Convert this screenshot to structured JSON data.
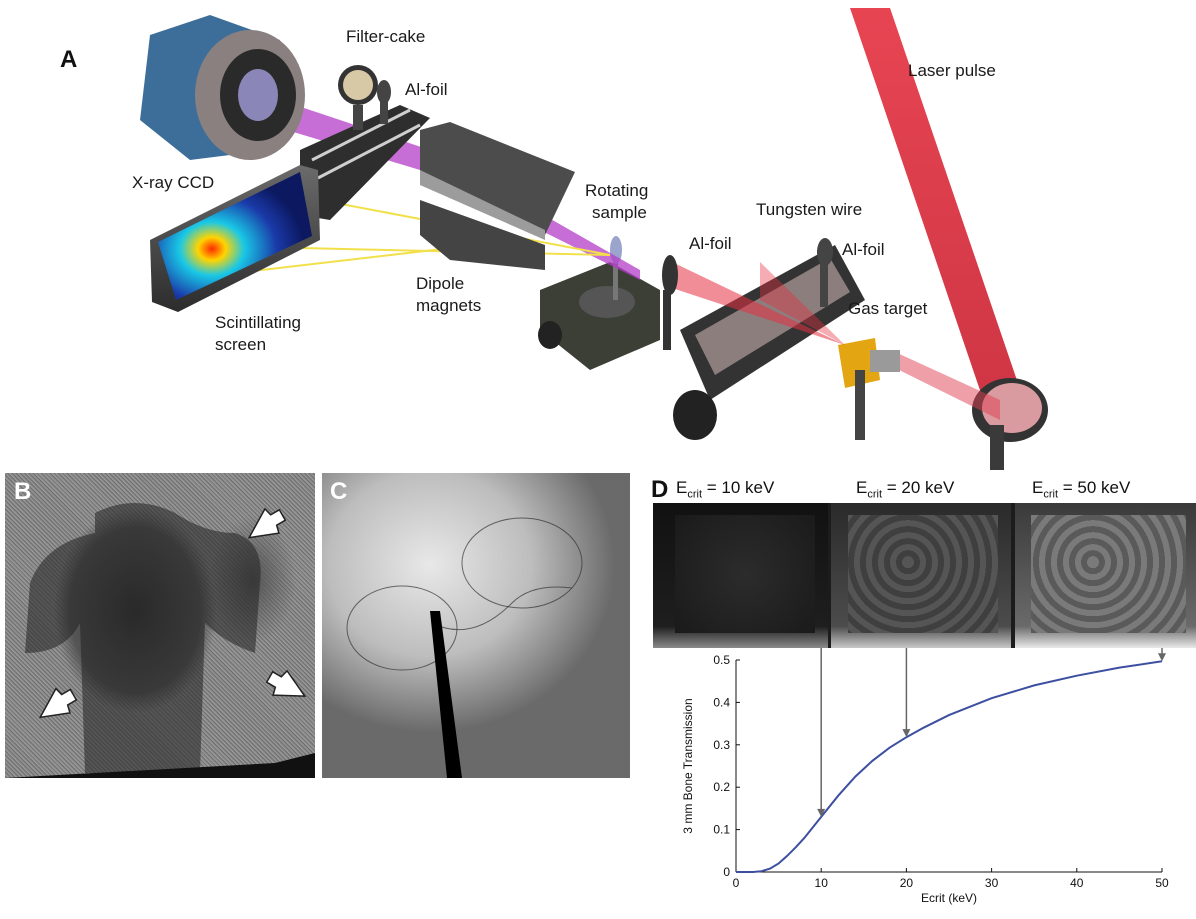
{
  "panels": {
    "a": {
      "letter": "A"
    },
    "b": {
      "letter": "B",
      "arrows": [
        "1",
        "2",
        "3"
      ]
    },
    "c": {
      "letter": "C"
    },
    "d": {
      "letter": "D"
    }
  },
  "setup_labels": {
    "filter_cake": "Filter-cake",
    "al_foil_top": "Al-foil",
    "laser_pulse": "Laser pulse",
    "xray_ccd": "X-ray CCD",
    "rotating_sample_1": "Rotating",
    "rotating_sample_2": "sample",
    "tungsten_wire": "Tungsten wire",
    "al_foil_mid": "Al-foil",
    "al_foil_right": "Al-foil",
    "gas_target": "Gas target",
    "dipole_1": "Dipole",
    "dipole_2": "magnets",
    "scint_1": "Scintillating",
    "scint_2": "screen"
  },
  "ecrit_headers": [
    {
      "prefix": "E",
      "sub": "crit",
      "value": " = 10 keV"
    },
    {
      "prefix": "E",
      "sub": "crit",
      "value": " = 20 keV"
    },
    {
      "prefix": "E",
      "sub": "crit",
      "value": " = 50 keV"
    }
  ],
  "colors": {
    "curve": "#3d4fa0",
    "laser": "#e5303f",
    "xray_beam": "#b43ec8",
    "arrow": "#666666"
  },
  "chart_data": {
    "type": "line",
    "xlabel": "Ecrit (keV)",
    "ylabel": "3 mm Bone Transmission",
    "xlim": [
      0,
      50
    ],
    "ylim": [
      0,
      0.5
    ],
    "xticks": [
      0,
      10,
      20,
      30,
      40,
      50
    ],
    "yticks": [
      0,
      0.1,
      0.2,
      0.3,
      0.4,
      0.5
    ],
    "grid": false,
    "series": [
      {
        "x": [
          0,
          2,
          3,
          4,
          5,
          6,
          7,
          8,
          9,
          10,
          12,
          14,
          16,
          18,
          20,
          22,
          25,
          30,
          35,
          40,
          45,
          50
        ],
        "values": [
          0,
          0,
          0.002,
          0.008,
          0.02,
          0.038,
          0.058,
          0.08,
          0.105,
          0.13,
          0.18,
          0.225,
          0.262,
          0.293,
          0.318,
          0.34,
          0.37,
          0.41,
          0.44,
          0.463,
          0.482,
          0.497
        ]
      }
    ],
    "annotations": [
      {
        "type": "arrow",
        "x": 10,
        "to_y": 0.13
      },
      {
        "type": "arrow",
        "x": 20,
        "to_y": 0.318
      },
      {
        "type": "arrow",
        "x": 50,
        "to_y": 0.497
      }
    ]
  }
}
